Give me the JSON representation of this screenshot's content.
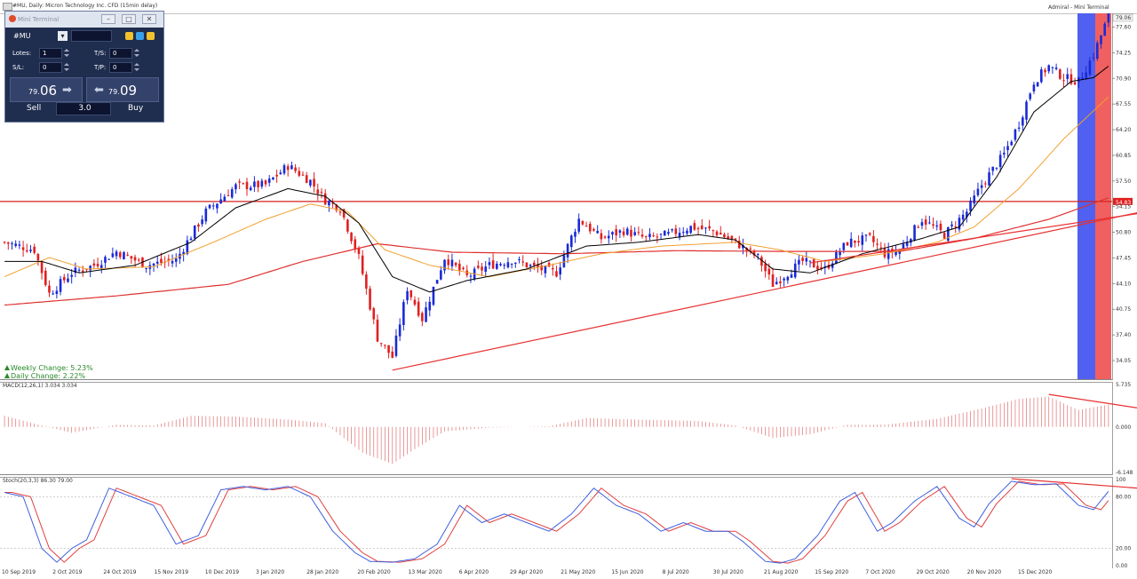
{
  "header": {
    "title": "#MU, Daily:  Micron Technology Inc. CFD (15min delay)",
    "right_label": "Admiral - Mini Terminal",
    "price_tag": "79.06",
    "level_tag": "54.83"
  },
  "mini_terminal": {
    "window_title": "Mini Terminal",
    "symbol": "#MU",
    "lots_label": "Lotes:",
    "lots_value": "1",
    "sl_label": "S/L:",
    "sl_value": "0",
    "ts_label": "T/S:",
    "ts_value": "0",
    "tp_label": "T/P:",
    "tp_value": "0",
    "sell_small": "79.",
    "sell_big": "06",
    "buy_small": "79.",
    "buy_big": "09",
    "sell_label": "Sell",
    "buy_label": "Buy",
    "spread": "3.0",
    "accent_sell": "#c8d0e6",
    "accent_buy": "#c8d0e6"
  },
  "changes": {
    "weekly": "Weekly Change: 5.23%",
    "daily": "Daily Change: 2.22%"
  },
  "colors": {
    "bull": "#1a2ad6",
    "bear": "#e02020",
    "ma_fast": "#000000",
    "ma_slow": "#f0a030",
    "ma_long": "#e03030",
    "trendline": "#e83030",
    "macd_hist": "#e07070",
    "stoch_main": "#4060e0",
    "stoch_signal": "#e04040",
    "band_blue": "#5060f0",
    "band_red": "#f06060"
  },
  "chart_data": [
    {
      "type": "candlestick",
      "title": "#MU, Daily:  Micron Technology Inc. CFD (15min delay)",
      "y_ticks": [
        "77.60",
        "74.25",
        "70.90",
        "67.55",
        "64.20",
        "60.85",
        "57.50",
        "54.15",
        "50.80",
        "47.45",
        "44.10",
        "40.75",
        "37.40",
        "34.05"
      ],
      "ylim": [
        31.5,
        79.4
      ],
      "x_ticks": [
        "10 Sep 2019",
        "2 Oct 2019",
        "24 Oct 2019",
        "15 Nov 2019",
        "10 Dec 2019",
        "3 Jan 2020",
        "28 Jan 2020",
        "20 Feb 2020",
        "13 Mar 2020",
        "6 Apr 2020",
        "29 Apr 2020",
        "21 May 2020",
        "15 Jun 2020",
        "8 Jul 2020",
        "30 Jul 2020",
        "21 Aug 2020",
        "15 Sep 2020",
        "7 Oct 2020",
        "29 Oct 2020",
        "20 Nov 2020",
        "15 Dec 2020"
      ],
      "close_anchors": [
        [
          0,
          49.5
        ],
        [
          8,
          48.5
        ],
        [
          12,
          42.8
        ],
        [
          18,
          45.5
        ],
        [
          24,
          46.5
        ],
        [
          30,
          48.3
        ],
        [
          38,
          46.5
        ],
        [
          46,
          47.2
        ],
        [
          54,
          53.5
        ],
        [
          62,
          56.8
        ],
        [
          70,
          57.0
        ],
        [
          76,
          59.5
        ],
        [
          82,
          57.5
        ],
        [
          86,
          55.0
        ],
        [
          90,
          54.0
        ],
        [
          95,
          47.5
        ],
        [
          100,
          37.0
        ],
        [
          104,
          34.5
        ],
        [
          108,
          43.5
        ],
        [
          112,
          39.5
        ],
        [
          118,
          47.5
        ],
        [
          124,
          45.0
        ],
        [
          130,
          46.5
        ],
        [
          136,
          47.2
        ],
        [
          142,
          46.2
        ],
        [
          148,
          45.5
        ],
        [
          154,
          52.5
        ],
        [
          160,
          50.0
        ],
        [
          166,
          51.0
        ],
        [
          172,
          50.0
        ],
        [
          178,
          50.5
        ],
        [
          184,
          51.5
        ],
        [
          190,
          51.0
        ],
        [
          196,
          49.5
        ],
        [
          202,
          47.5
        ],
        [
          206,
          44.0
        ],
        [
          210,
          45.5
        ],
        [
          214,
          47.0
        ],
        [
          220,
          46.0
        ],
        [
          226,
          49.5
        ],
        [
          232,
          50.0
        ],
        [
          236,
          48.0
        ],
        [
          240,
          48.5
        ],
        [
          246,
          52.5
        ],
        [
          252,
          50.5
        ],
        [
          258,
          53.5
        ],
        [
          262,
          57.0
        ],
        [
          268,
          61.0
        ],
        [
          272,
          65.0
        ],
        [
          276,
          70.5
        ],
        [
          280,
          72.5
        ],
        [
          284,
          71.0
        ],
        [
          288,
          70.5
        ],
        [
          292,
          74.0
        ],
        [
          296,
          79.06
        ]
      ],
      "ma_fast_anchors": [
        [
          0,
          47.0
        ],
        [
          10,
          47.0
        ],
        [
          20,
          45.5
        ],
        [
          35,
          46.5
        ],
        [
          50,
          49.5
        ],
        [
          62,
          54.0
        ],
        [
          76,
          56.5
        ],
        [
          86,
          55.5
        ],
        [
          95,
          52.0
        ],
        [
          104,
          45.0
        ],
        [
          114,
          43.0
        ],
        [
          124,
          44.5
        ],
        [
          140,
          46.0
        ],
        [
          156,
          49.0
        ],
        [
          170,
          49.5
        ],
        [
          186,
          50.5
        ],
        [
          196,
          49.8
        ],
        [
          206,
          46.0
        ],
        [
          216,
          45.5
        ],
        [
          230,
          48.0
        ],
        [
          246,
          50.0
        ],
        [
          256,
          51.5
        ],
        [
          266,
          58.0
        ],
        [
          276,
          66.5
        ],
        [
          286,
          70.5
        ],
        [
          292,
          71.0
        ],
        [
          296,
          72.5
        ]
      ],
      "ma_slow_anchors": [
        [
          0,
          45.0
        ],
        [
          12,
          47.5
        ],
        [
          22,
          46.0
        ],
        [
          40,
          46.3
        ],
        [
          56,
          49.5
        ],
        [
          70,
          52.5
        ],
        [
          82,
          54.5
        ],
        [
          92,
          53.5
        ],
        [
          102,
          48.5
        ],
        [
          114,
          46.5
        ],
        [
          130,
          45.0
        ],
        [
          146,
          46.5
        ],
        [
          160,
          48.0
        ],
        [
          176,
          49.0
        ],
        [
          196,
          49.5
        ],
        [
          208,
          48.5
        ],
        [
          220,
          47.0
        ],
        [
          236,
          48.0
        ],
        [
          250,
          49.5
        ],
        [
          260,
          51.5
        ],
        [
          272,
          56.5
        ],
        [
          284,
          63.0
        ],
        [
          296,
          68.5
        ]
      ],
      "ma_long_anchors": [
        [
          0,
          41.3
        ],
        [
          30,
          42.5
        ],
        [
          60,
          44.0
        ],
        [
          80,
          47.0
        ],
        [
          100,
          49.3
        ],
        [
          120,
          48.2
        ],
        [
          150,
          48.0
        ],
        [
          180,
          48.4
        ],
        [
          210,
          48.3
        ],
        [
          240,
          48.3
        ],
        [
          260,
          50.0
        ],
        [
          280,
          52.5
        ],
        [
          296,
          55.3
        ]
      ],
      "hlines": [
        54.83
      ],
      "trendlines": [
        {
          "x1": 104,
          "y1": 32.8,
          "x2": 310,
          "y2": 54.0
        },
        {
          "x1": 216,
          "y1": 46.8,
          "x2": 310,
          "y2": 53.7
        }
      ]
    },
    {
      "type": "bar",
      "title": "MACD(12,26,1) 3.034 3.034",
      "y_ticks": [
        "5.735",
        "0.000",
        "-6.148"
      ],
      "ylim": [
        -6.148,
        5.735
      ],
      "anchors": [
        [
          0,
          1.5
        ],
        [
          10,
          0.2
        ],
        [
          18,
          -0.8
        ],
        [
          30,
          0.3
        ],
        [
          40,
          0.2
        ],
        [
          50,
          1.5
        ],
        [
          62,
          1.4
        ],
        [
          76,
          1.0
        ],
        [
          86,
          0.5
        ],
        [
          96,
          -3.5
        ],
        [
          104,
          -5.0
        ],
        [
          110,
          -3.0
        ],
        [
          118,
          -0.6
        ],
        [
          130,
          -0.1
        ],
        [
          146,
          0.1
        ],
        [
          156,
          1.2
        ],
        [
          170,
          1.0
        ],
        [
          186,
          0.8
        ],
        [
          196,
          0.2
        ],
        [
          206,
          -1.5
        ],
        [
          216,
          -1.0
        ],
        [
          226,
          0.3
        ],
        [
          236,
          0.3
        ],
        [
          250,
          1.1
        ],
        [
          262,
          2.5
        ],
        [
          272,
          3.8
        ],
        [
          280,
          4.1
        ],
        [
          288,
          2.3
        ],
        [
          296,
          3.034
        ]
      ],
      "divergence_line": {
        "x1": 280,
        "y1": 4.4,
        "x2": 306,
        "y2": 2.4
      }
    },
    {
      "type": "line",
      "title": "Stoch(20,3,3) 86.30 79.00",
      "y_ticks": [
        "100",
        "80.00",
        "20.00",
        "0.00"
      ],
      "ylim": [
        0,
        100
      ],
      "anchors": [
        [
          0,
          85
        ],
        [
          5,
          80
        ],
        [
          10,
          20
        ],
        [
          14,
          4
        ],
        [
          18,
          20
        ],
        [
          22,
          30
        ],
        [
          28,
          90
        ],
        [
          34,
          80
        ],
        [
          40,
          70
        ],
        [
          46,
          25
        ],
        [
          52,
          35
        ],
        [
          58,
          88
        ],
        [
          64,
          92
        ],
        [
          70,
          88
        ],
        [
          76,
          92
        ],
        [
          82,
          80
        ],
        [
          88,
          40
        ],
        [
          94,
          15
        ],
        [
          98,
          5
        ],
        [
          104,
          4
        ],
        [
          110,
          8
        ],
        [
          116,
          25
        ],
        [
          122,
          70
        ],
        [
          128,
          50
        ],
        [
          134,
          60
        ],
        [
          140,
          50
        ],
        [
          146,
          40
        ],
        [
          152,
          60
        ],
        [
          158,
          90
        ],
        [
          164,
          70
        ],
        [
          170,
          60
        ],
        [
          176,
          40
        ],
        [
          182,
          50
        ],
        [
          188,
          40
        ],
        [
          194,
          40
        ],
        [
          198,
          28
        ],
        [
          204,
          5
        ],
        [
          208,
          3
        ],
        [
          212,
          8
        ],
        [
          218,
          35
        ],
        [
          224,
          75
        ],
        [
          228,
          85
        ],
        [
          234,
          40
        ],
        [
          238,
          50
        ],
        [
          244,
          75
        ],
        [
          250,
          92
        ],
        [
          256,
          55
        ],
        [
          260,
          45
        ],
        [
          264,
          72
        ],
        [
          270,
          98
        ],
        [
          276,
          94
        ],
        [
          282,
          95
        ],
        [
          288,
          70
        ],
        [
          292,
          65
        ],
        [
          296,
          86.3
        ]
      ],
      "divergence_line": {
        "x1": 270,
        "y1": 101,
        "x2": 307,
        "y2": 89
      }
    }
  ]
}
